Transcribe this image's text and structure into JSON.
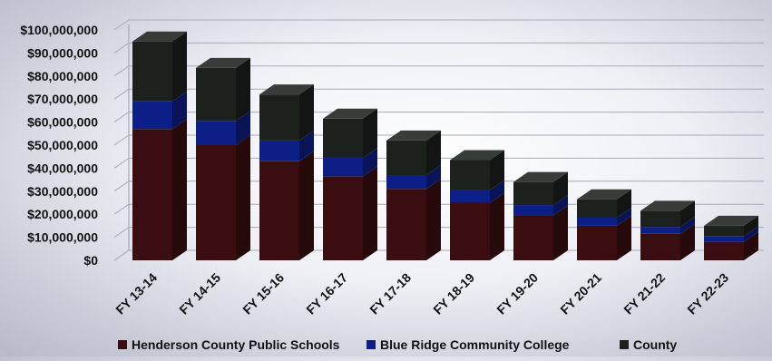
{
  "chart_data": {
    "type": "bar",
    "stacked": true,
    "three_d": true,
    "categories": [
      "FY 13-14",
      "FY 14-15",
      "FY 15-16",
      "FY 16-17",
      "FY 17-18",
      "FY 18-19",
      "FY 19-20",
      "FY 20-21",
      "FY 21-22",
      "FY 22-23"
    ],
    "series": [
      {
        "name": "Henderson County Public Schools",
        "color": "#3a0e10",
        "values": [
          57000000,
          50000000,
          43000000,
          36500000,
          31000000,
          25000000,
          19500000,
          15000000,
          11500000,
          8000000
        ]
      },
      {
        "name": "Blue Ridge Community College",
        "color": "#0c1f86",
        "values": [
          12000000,
          10500000,
          9000000,
          8000000,
          6000000,
          5500000,
          4500000,
          3500000,
          3000000,
          2500000
        ]
      },
      {
        "name": "County",
        "color": "#1c211d",
        "values": [
          26000000,
          23000000,
          20000000,
          17000000,
          15000000,
          13000000,
          10000000,
          8000000,
          7000000,
          4500000
        ]
      }
    ],
    "y_ticks": [
      "$0",
      "$10,000,000",
      "$20,000,000",
      "$30,000,000",
      "$40,000,000",
      "$50,000,000",
      "$60,000,000",
      "$70,000,000",
      "$80,000,000",
      "$90,000,000",
      "$100,000,000"
    ],
    "ylim": [
      0,
      100000000
    ],
    "grid": true,
    "legend_position": "bottom"
  }
}
